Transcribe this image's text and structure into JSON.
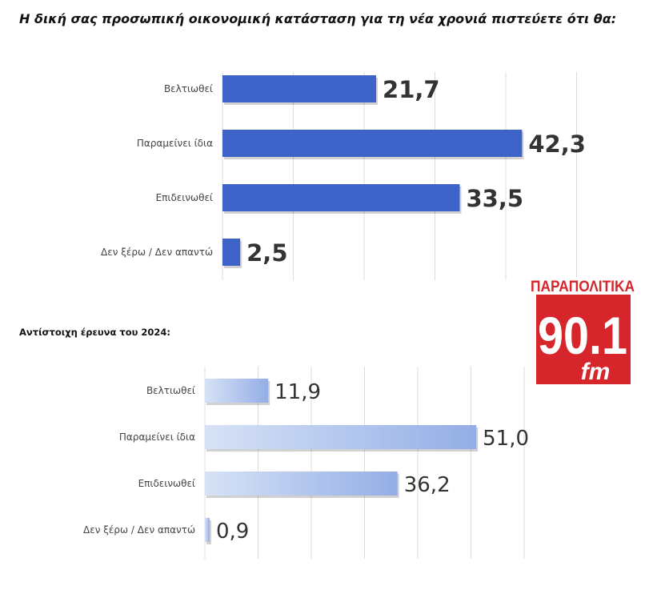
{
  "title": "Η δική σας προσωπική οικονομική κατάσταση για τη νέα χρονιά πιστεύετε ότι θα:",
  "subtitle_2024": "Αντίστοιχη έρευνα του 2024:",
  "logo": {
    "top_text": "ΠΑΡΑΠΟΛΙΤΙΚΑ",
    "number": "90.1",
    "suffix": "fm",
    "color": "#d7262b"
  },
  "colors": {
    "bar_main": "#3d63c9",
    "bar_2024_start": "#d7e2f6",
    "bar_2024_end": "#93aee6",
    "grid": "#dcdcdc"
  },
  "chart_data": [
    {
      "type": "bar",
      "orientation": "horizontal",
      "categories": [
        "Βελτιωθεί",
        "Παραμείνει ίδια",
        "Επιδεινωθεί",
        "Δεν ξέρω / Δεν απαντώ"
      ],
      "values": [
        "21,7",
        "42,3",
        "33,5",
        "2,5"
      ],
      "xlim": [
        0,
        50
      ],
      "grid": true
    },
    {
      "type": "bar",
      "orientation": "horizontal",
      "categories": [
        "Βελτιωθεί",
        "Παραμείνει ίδια",
        "Επιδεινωθεί",
        "Δεν ξέρω / Δεν απαντώ"
      ],
      "values": [
        "11,9",
        "51,0",
        "36,2",
        "0,9"
      ],
      "xlim": [
        0,
        60
      ],
      "grid": true
    }
  ]
}
